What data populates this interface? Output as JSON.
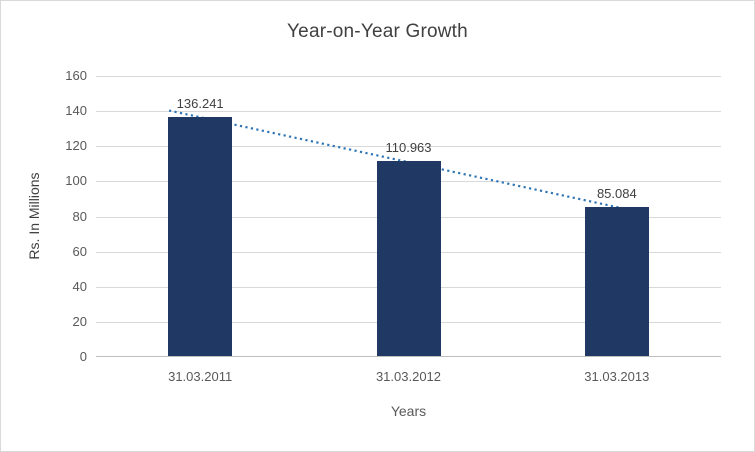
{
  "chart_data": {
    "type": "bar",
    "title": "Year-on-Year Growth",
    "xlabel": "Years",
    "ylabel": "Rs. In Millions",
    "categories": [
      "31.03.2011",
      "31.03.2012",
      "31.03.2013"
    ],
    "values": [
      136.241,
      110.963,
      85.084
    ],
    "data_labels": [
      "136.241",
      "110.963",
      "85.084"
    ],
    "ylim": [
      0,
      160
    ],
    "yticks": [
      0,
      20,
      40,
      60,
      80,
      100,
      120,
      140,
      160
    ],
    "grid": true,
    "legend": false,
    "bar_color": "#1F3864",
    "trendline": {
      "type": "linear",
      "style": "dotted",
      "color": "#2E75B6"
    },
    "colors": {
      "gridline": "#D9D9D9",
      "axis_line": "#BFBFBF",
      "tick_text": "#595959",
      "title_text": "#404040",
      "label_text": "#404040",
      "border": "#D9D9D9",
      "background": "#FFFFFF"
    }
  }
}
